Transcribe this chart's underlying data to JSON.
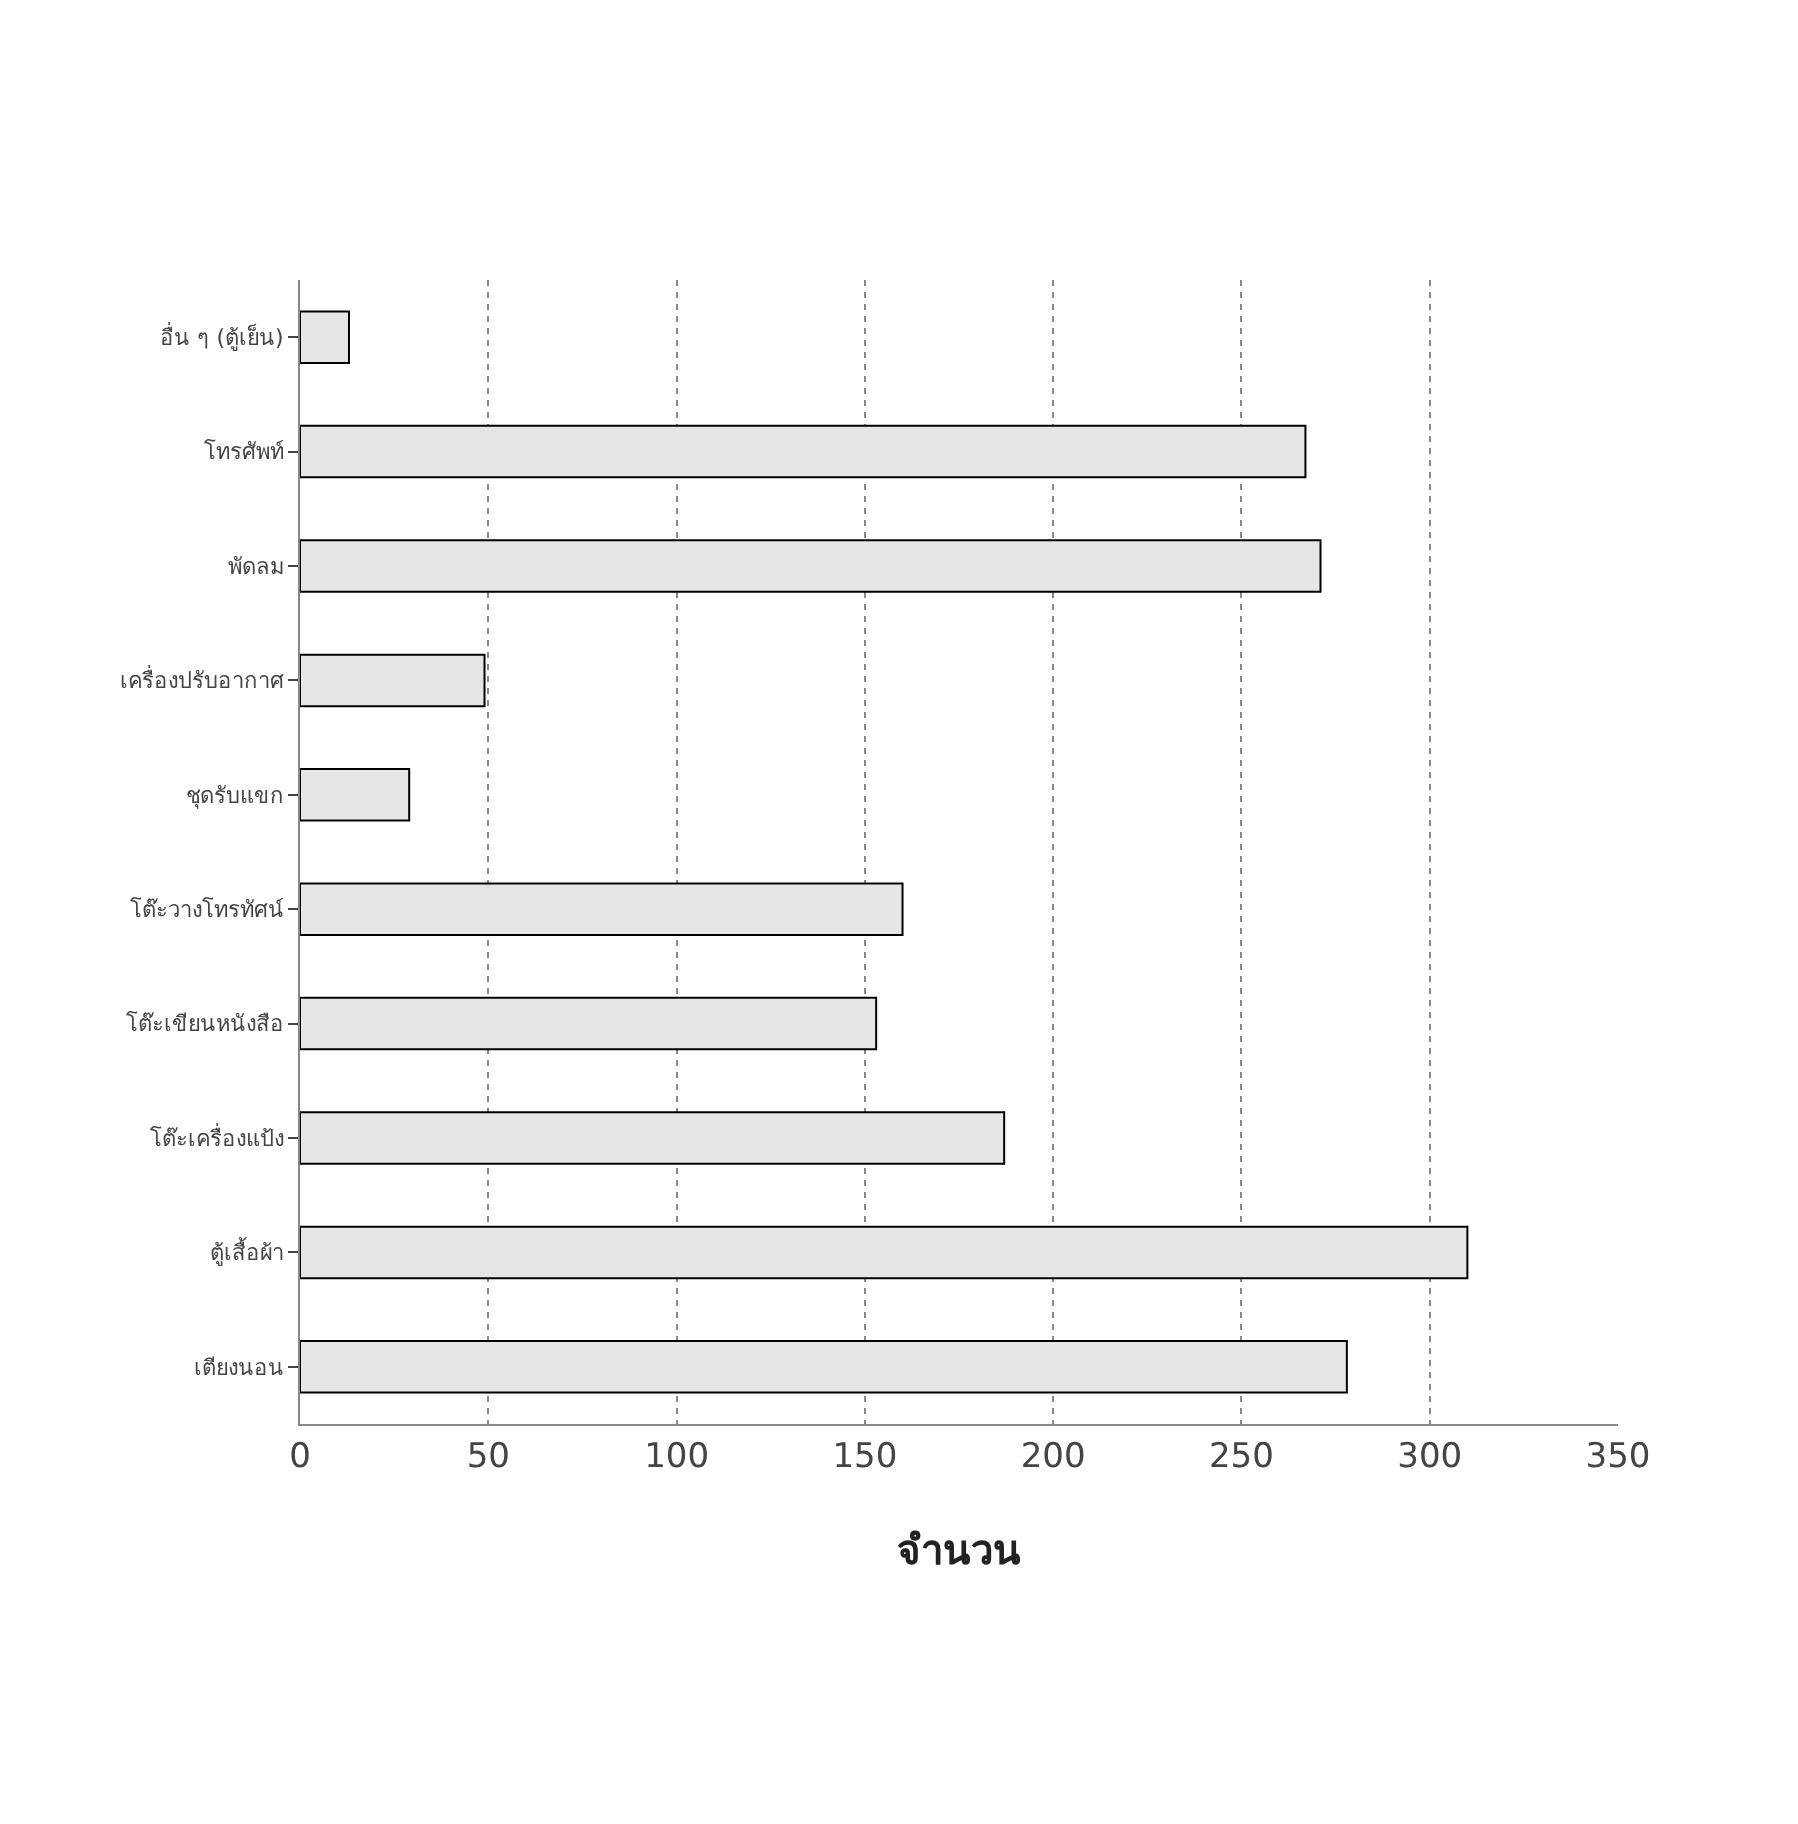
{
  "chart_data": {
    "type": "bar",
    "orientation": "horizontal",
    "xlabel": "จำนวน",
    "categories": [
      "อื่น ๆ (ตู้เย็น)",
      "โทรศัพท์",
      "พัดลม",
      "เครื่องปรับอากาศ",
      "ชุดรับแขก",
      "โต๊ะวางโทรทัศน์",
      "โต๊ะเขียนหนังสือ",
      "โต๊ะเครื่องแป้ง",
      "ตู้เสื้อผ้า",
      "เตียงนอน"
    ],
    "values": [
      13,
      267,
      271,
      49,
      29,
      160,
      153,
      187,
      310,
      278
    ],
    "color": "#e6e6e6",
    "xlim": [
      0,
      350
    ],
    "xticks": [
      0,
      50,
      100,
      150,
      200,
      250,
      300,
      350
    ],
    "grid": "x"
  }
}
